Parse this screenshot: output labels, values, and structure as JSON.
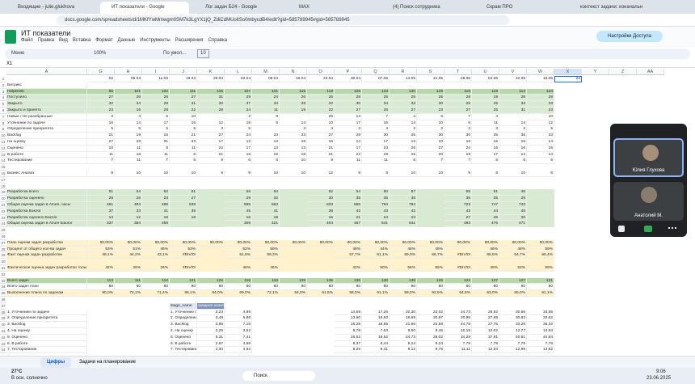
{
  "browser": {
    "tabs": [
      "Входящие - julie.glukhova",
      "ИТ показатели - Google",
      "Лог задач Б24 - Google",
      "MAX",
      "(4) Поиск сотрудника",
      "Скрам ПРО",
      "контекст задачи: изначальн"
    ],
    "url": "docs.google.com/spreadsheets/d/1MKfYwMmwgm0SM7k3LgYX1jQ_ZdiCdMUoltSo0mbycdB4/edit?gid=585789945#gid=585789945"
  },
  "sheets": {
    "title": "ИТ показатели",
    "menu": [
      "Файл",
      "Правка",
      "Вид",
      "Вставка",
      "Формат",
      "Данные",
      "Инструменты",
      "Расширения",
      "Справка"
    ],
    "share_button": "Настройки Доступа",
    "toolbar": {
      "search": "Меню",
      "zoom": "100%",
      "font": "По умол...",
      "font_size": "10"
    },
    "cell_ref": "X1",
    "columns": [
      "A",
      "G",
      "H",
      "I",
      "J",
      "K",
      "L",
      "M",
      "N",
      "O",
      "P",
      "Q",
      "R",
      "S",
      "T",
      "U",
      "V",
      "W",
      "X",
      "Y",
      "Z",
      "AA"
    ],
    "rows": [
      {
        "num": "1",
        "cells": [
          "02",
          "05.03",
          "11.03",
          "19.03",
          "26.03",
          "02.04",
          "09.04",
          "16.04",
          "23.04",
          "30.04",
          "07.05",
          "14.05",
          "21.05",
          "28.05",
          "04.06",
          "10.06",
          "18.06",
          "24"
        ]
      },
      {
        "num": "2",
        "label": "Битрикс"
      },
      {
        "num": "3",
        "label": "HelpDesk",
        "fill": "#b6d7a8",
        "cells": [
          "95",
          "101",
          "102",
          "111",
          "116",
          "107",
          "101",
          "115",
          "118",
          "128",
          "123",
          "130",
          "129",
          "116",
          "119",
          "114",
          "123"
        ]
      },
      {
        "num": "4",
        "label": "Поступило",
        "fill": "#d9ead3",
        "cells": [
          "27",
          "26",
          "26",
          "27",
          "31",
          "29",
          "24",
          "26",
          "25",
          "28",
          "25",
          "25",
          "25",
          "28",
          "19",
          "28",
          "29"
        ]
      },
      {
        "num": "5",
        "label": "Закрыто",
        "fill": "#d9ead3",
        "cells": [
          "32",
          "34",
          "29",
          "31",
          "30",
          "37",
          "34",
          "29",
          "22",
          "30",
          "34",
          "33",
          "30",
          "25",
          "25",
          "33",
          "33"
        ]
      },
      {
        "num": "6",
        "label": "Закрыто и принято",
        "fill": "#d9ead3",
        "cells": [
          "23",
          "16",
          "28",
          "22",
          "28",
          "24",
          "11",
          "19",
          "22",
          "27",
          "26",
          "27",
          "23",
          "27",
          "25",
          "31",
          "23"
        ]
      },
      {
        "num": "7",
        "label": "Новые / Не разобранные",
        "cells": [
          "3",
          "4",
          "5",
          "10",
          null,
          "2",
          "9",
          null,
          "26",
          "14",
          "7",
          "4",
          "6",
          "7",
          "4",
          null,
          "10"
        ]
      },
      {
        "num": "8",
        "label": "Уточнение по задаче",
        "cells": [
          "16",
          "14",
          "17",
          "16",
          "12",
          "16",
          "8",
          "14",
          "10",
          "17",
          "16",
          "14",
          "10",
          "6",
          "11",
          "14",
          "12"
        ]
      },
      {
        "num": "9",
        "label": "Определение приоритета",
        "cells": [
          "5",
          "5",
          "5",
          "5",
          "3",
          "5",
          null,
          "3",
          "4",
          "3",
          "4",
          "2",
          "2",
          "3",
          "3",
          "2",
          "5"
        ]
      },
      {
        "num": "10",
        "label": "Backlog",
        "cells": [
          "21",
          "19",
          "15",
          "21",
          "27",
          "24",
          "23",
          "23",
          "27",
          "29",
          "30",
          "25",
          "30",
          "30",
          "35",
          "36",
          "33"
        ]
      },
      {
        "num": "11",
        "label": "На оценку",
        "cells": [
          "27",
          "29",
          "31",
          "33",
          "17",
          "12",
          "13",
          "18",
          "16",
          "14",
          "17",
          "13",
          "10",
          "16",
          "16",
          "16",
          "14"
        ]
      },
      {
        "num": "12",
        "label": "Оценено",
        "cells": [
          "10",
          "11",
          "8",
          "11",
          "22",
          "17",
          "13",
          "13",
          "21",
          "17",
          "23",
          "26",
          "27",
          "24",
          "16",
          "16",
          "16"
        ]
      },
      {
        "num": "13",
        "label": "В работе",
        "cells": [
          "11",
          "16",
          "11",
          "6",
          "21",
          "16",
          "19",
          "18",
          "21",
          "22",
          "19",
          "16",
          "20",
          "19",
          "17",
          "14",
          "14"
        ]
      },
      {
        "num": "14",
        "label": "Тестирование",
        "cells": [
          "7",
          "11",
          "7",
          "5",
          "9",
          "6",
          "6",
          "10",
          "9",
          "11",
          "11",
          "6",
          "7",
          "7",
          "5",
          "6",
          "5"
        ]
      },
      {
        "num": "15"
      },
      {
        "num": "16",
        "label": "Бизнес Анализ",
        "cells": [
          "8",
          "10",
          "10",
          "10",
          "9",
          "9",
          "10",
          "10",
          "12",
          "9",
          "8",
          "10",
          "10",
          "9",
          "8",
          "10",
          "6"
        ]
      },
      {
        "num": "17"
      },
      {
        "num": "18"
      },
      {
        "num": "19",
        "label": "Разработка всего",
        "fill": "#d9ead3",
        "cells": [
          "51",
          "54",
          "52",
          "51",
          null,
          "56",
          "54",
          null,
          "52",
          "54",
          "50",
          "57",
          null,
          "55",
          "51",
          "46"
        ]
      },
      {
        "num": "20",
        "label": "Разработка оценено",
        "fill": "#d9ead3",
        "cells": [
          "28",
          "26",
          "23",
          "27",
          null,
          "29",
          "32",
          null,
          "30",
          "35",
          "36",
          "35",
          null,
          "36",
          "35",
          "29"
        ]
      },
      {
        "num": "21",
        "label": "Общая оценка задач в Azure, часы",
        "fill": "#d9ead3",
        "cells": [
          "461",
          "484",
          "499",
          "539",
          null,
          "595",
          "663",
          null,
          "833",
          "666",
          "794",
          "794",
          null,
          "723",
          "747",
          "743"
        ]
      },
      {
        "num": "22",
        "label": "Разработка Бэклог",
        "fill": "#d9ead3",
        "cells": [
          "37",
          "33",
          "41",
          "39",
          null,
          "45",
          "41",
          null,
          "38",
          "42",
          "43",
          "42",
          null,
          "43",
          "44",
          "45"
        ]
      },
      {
        "num": "23",
        "label": "Разработка оценено Бэклог",
        "fill": "#d9ead3",
        "cells": [
          "14",
          "12",
          "16",
          "18",
          null,
          "16",
          "18",
          null,
          "16",
          "21",
          "24",
          "23",
          null,
          "27",
          "26",
          "30"
        ]
      },
      {
        "num": "24",
        "label": "Общая оценка задач в Azure Бэклог",
        "fill": "#d9ead3",
        "cells": [
          "337",
          "364",
          "459",
          null,
          null,
          "309",
          "421",
          null,
          "404",
          "457",
          "541",
          "541",
          null,
          "493",
          "475",
          "471"
        ]
      },
      {
        "num": "25"
      },
      {
        "num": "26"
      },
      {
        "num": "27",
        "label": "План оценки задач разработки",
        "fill": "#fff2cc",
        "cells": [
          "90,00%",
          "90,00%",
          "90,00%",
          "90,00%",
          "90,00%",
          "90,00%",
          "90,00%",
          "90,00%",
          "90,00%",
          "90,00%",
          "90,00%",
          "90,00%",
          "90,00%",
          "90,00%",
          "90,00%",
          "90,00%",
          "90,00%"
        ]
      },
      {
        "num": "28",
        "label": "Процент от общего кол-ва задач",
        "fill": "#fff2cc",
        "cells": [
          "53%",
          "51%",
          "45%",
          "53%",
          null,
          "52%",
          "59%",
          null,
          null,
          "48%",
          "44%",
          "48%",
          "49%",
          null,
          "46%",
          "48%",
          "59%"
        ]
      },
      {
        "num": "29",
        "label": "Факт оценки задач разработки",
        "fill": "#fff2cc",
        "cells": [
          "48,1%",
          "44,2%",
          "43,1%",
          "#DIV/0!",
          null,
          "51,8%",
          "59,3%",
          null,
          null,
          "57,7%",
          "61,1%",
          "69,0%",
          "66,7%",
          "#DIV/0!",
          "65,5%",
          "64,7%",
          "60,4%"
        ]
      },
      {
        "num": "30",
        "fill": "#fff2cc"
      },
      {
        "num": "31",
        "label": "Фактическое оценка задач разработки только бэклог",
        "fill": "#fff2cc",
        "cells": [
          "42%",
          "29%",
          "26%",
          "#DIV/0!",
          null,
          "46%",
          "46%",
          null,
          null,
          "42%",
          "50%",
          "56%",
          "55%",
          "#DIV/0!",
          "49%",
          "53%",
          "59%"
        ]
      },
      {
        "num": "32"
      },
      {
        "num": "33",
        "label": "Всего задач",
        "fill": "#b6d7a8",
        "cells": [
          "113",
          "111",
          "112",
          "121",
          "125",
          "116",
          "116",
          "125",
          "136",
          "136",
          "130",
          "138",
          "128",
          "124",
          "127",
          "127",
          "121"
        ]
      },
      {
        "num": "34",
        "label": "Всего задач план",
        "cells": [
          "80",
          "80",
          "80",
          "80",
          "80",
          "80",
          "80",
          "80",
          "80",
          "80",
          "80",
          "80",
          "80",
          "80",
          "80",
          "80",
          "80"
        ]
      },
      {
        "num": "35",
        "label": "Выполнение плана по задачам",
        "fill": "#fff2cc",
        "cells": [
          "90,0%",
          "72,1%",
          "71,4%",
          "96,1%",
          "64,0%",
          "69,0%",
          "72,1%",
          "64,0%",
          "61,5%",
          "58,0%",
          "61,1%",
          "58,0%",
          "62,5%",
          "64,5%",
          "63,0%",
          "65,0%",
          "61,1%"
        ]
      },
      {
        "num": "36"
      },
      {
        "num": "37",
        "cells": [
          null,
          null,
          null,
          "stage_name",
          "среднее количество"
        ]
      },
      {
        "num": "38",
        "label": "1. Уточнение по задаче",
        "cells": [
          null,
          null,
          null,
          "1. Уточнение по з",
          "3,23",
          "4,95",
          null,
          null,
          null,
          "14,59",
          "17,26",
          "20,30",
          "23,02",
          "24,73",
          "26,92",
          "30,66",
          "33,55"
        ]
      },
      {
        "num": "39",
        "label": "2. Определение приоритета",
        "cells": [
          null,
          null,
          null,
          "2. Определение пр",
          "3,49",
          "5,88",
          null,
          null,
          null,
          "13,60",
          "15,93",
          "18,58",
          "20,97",
          "20,99",
          "27,69",
          "30,83",
          "33,62"
        ]
      },
      {
        "num": "40",
        "label": "3. Backlog",
        "cells": [
          null,
          null,
          null,
          "3. Backlog",
          "3,86",
          "7,18",
          null,
          null,
          null,
          "16,28",
          "18,95",
          "21,66",
          "22,59",
          "24,78",
          "27,75",
          "33,28",
          "36,32"
        ]
      },
      {
        "num": "41",
        "label": "4. На оценку",
        "cells": [
          null,
          null,
          null,
          "4. На оценку",
          "2,29",
          "3,52",
          null,
          null,
          null,
          "6,78",
          "7,63",
          "8,60",
          "9,46",
          "10,18",
          "12,02",
          "12,77",
          "13,93"
        ]
      },
      {
        "num": "42",
        "label": "5. Оценено",
        "cells": [
          null,
          null,
          null,
          "5. Оценено",
          "5,31",
          "7,41",
          null,
          null,
          null,
          "16,52",
          "19,52",
          "24,73",
          "28,02",
          "34,29",
          "37,81",
          "40,61",
          "44,84"
        ]
      },
      {
        "num": "43",
        "label": "6. В работе",
        "cells": [
          null,
          null,
          null,
          "6. В работе",
          "2,97",
          "4,58",
          null,
          null,
          null,
          "8,37",
          "8,44",
          "9,24",
          "9,24",
          "7,79",
          "7,79",
          "7,79",
          "7,79"
        ]
      },
      {
        "num": "44",
        "label": "7. Тестирование",
        "cells": [
          null,
          null,
          null,
          "7. Тестирование",
          "3,30",
          "4,52",
          null,
          null,
          null,
          "8,26",
          "9,41",
          "9,12",
          "9,76",
          "11,11",
          "12,34",
          "12,99",
          "13,62"
        ]
      }
    ],
    "sheet_tabs": [
      "Цифры",
      "Задачи на планирование"
    ]
  },
  "call": {
    "participants": [
      "Юлия Глухова",
      "Анатолий М."
    ]
  },
  "taskbar": {
    "weather": "27°C",
    "weather_text": "В осн. солнечно",
    "search": "Поиск",
    "time": "9:06",
    "date": "23.06.2025"
  }
}
